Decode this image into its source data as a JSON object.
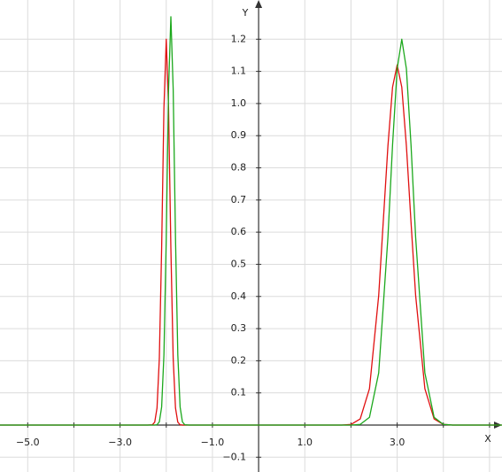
{
  "chart_data": {
    "type": "line",
    "x_label": "X",
    "y_label": "Y",
    "x": [
      -5.6,
      -2.4,
      -2.3,
      -2.25,
      -2.2,
      -2.15,
      -2.1,
      -2.05,
      -2.0,
      -1.95,
      -1.9,
      -1.85,
      -1.8,
      -1.75,
      -1.7,
      -1.65,
      -1.6,
      -1.5,
      1.8,
      2.0,
      2.2,
      2.4,
      2.6,
      2.8,
      2.9,
      3.0,
      3.1,
      3.2,
      3.3,
      3.4,
      3.6,
      3.8,
      4.0,
      4.2,
      5.3
    ],
    "series": [
      {
        "color": "#e01010",
        "values": [
          0,
          0,
          0.001,
          0.009,
          0.053,
          0.207,
          0.55,
          0.987,
          1.2,
          0.987,
          0.55,
          0.207,
          0.053,
          0.009,
          0.001,
          0,
          0,
          0,
          0,
          0.002,
          0.019,
          0.113,
          0.403,
          0.868,
          1.051,
          1.12,
          1.051,
          0.868,
          0.631,
          0.403,
          0.113,
          0.019,
          0.002,
          0,
          0
        ]
      },
      {
        "color": "#1ca81c",
        "values": [
          0,
          0,
          0,
          0,
          0.001,
          0.01,
          0.056,
          0.219,
          0.582,
          1.045,
          1.27,
          1.045,
          0.582,
          0.219,
          0.056,
          0.01,
          0.001,
          0,
          0,
          0,
          0.002,
          0.024,
          0.162,
          0.584,
          0.871,
          1.108,
          1.2,
          1.108,
          0.871,
          0.584,
          0.162,
          0.024,
          0.002,
          0,
          0
        ]
      }
    ],
    "xlim": [
      -5.6,
      5.27
    ],
    "ylim": [
      -0.146,
      1.322
    ],
    "xticks": [
      {
        "value": -5,
        "label": "−5.0"
      },
      {
        "value": -3,
        "label": "−3.0"
      },
      {
        "value": -1,
        "label": "−1.0"
      },
      {
        "value": 1,
        "label": "1.0"
      },
      {
        "value": 3,
        "label": "3.0"
      }
    ],
    "xgrid": [
      -5,
      -4,
      -3,
      -2,
      -1,
      1,
      2,
      3,
      4,
      5
    ],
    "yticks": [
      {
        "value": -0.1,
        "label": "−0.1"
      },
      0.1,
      0.2,
      0.3,
      0.4,
      0.5,
      0.6,
      0.7,
      0.8,
      0.9,
      {
        "value": 1,
        "label": "1.0"
      },
      1.1,
      1.2
    ],
    "grid": true
  }
}
